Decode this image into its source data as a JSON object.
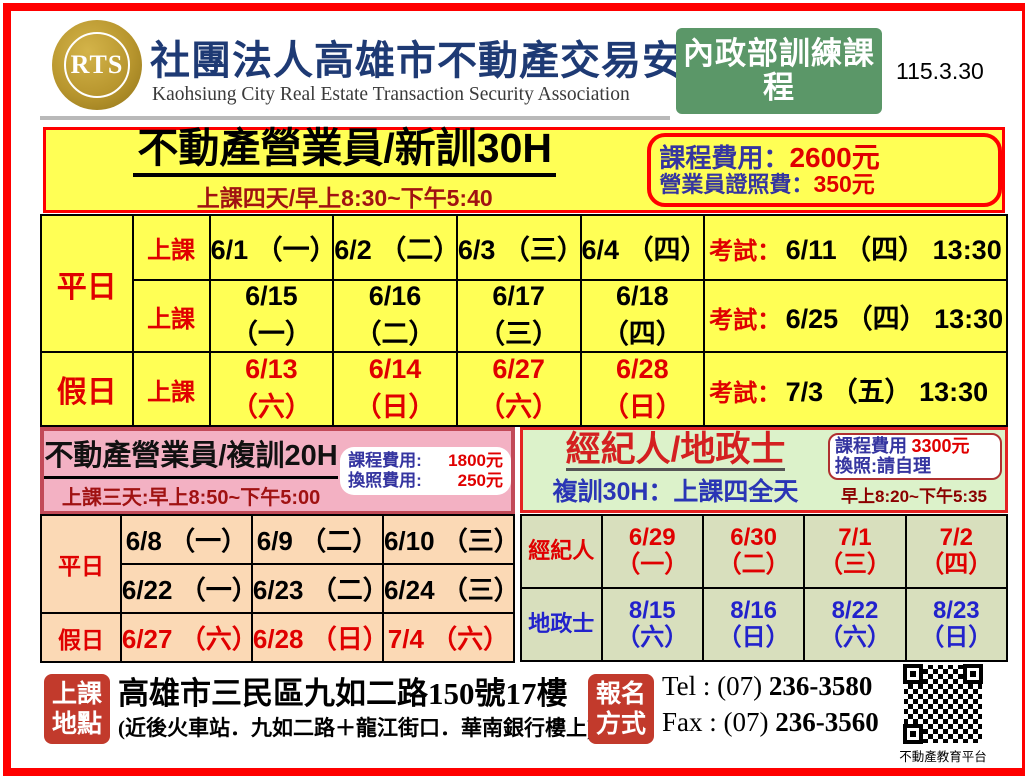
{
  "header": {
    "logo_text": "RTS",
    "org_name_zh": "社團法人高雄市不動產交易安全協會",
    "org_name_en": "Kaohsiung City Real Estate Transaction Security Association",
    "program_badge": "內政部訓練課程",
    "date": "115.3.30"
  },
  "new30h": {
    "title": "不動產營業員/新訓30H",
    "subtitle": "上課四天/早上8:30~下午5:40",
    "fees": {
      "course_label": "課程費用：",
      "course_value": "2600元",
      "license_label": "營業員證照費：",
      "license_value": "350元"
    },
    "rows": [
      {
        "group": "平日",
        "session": "上課",
        "dates": [
          "6/1 （一）",
          "6/2 （二）",
          "6/3 （三）",
          "6/4 （四）"
        ],
        "exam_label": "考試：",
        "exam": "6/11 （四） 13:30"
      },
      {
        "session": "上課",
        "dates": [
          "6/15 （一）",
          "6/16 （二）",
          "6/17 （三）",
          "6/18 （四）"
        ],
        "exam_label": "考試：",
        "exam": "6/25 （四） 13:30"
      },
      {
        "group": "假日",
        "session": "上課",
        "dates": [
          "6/13 （六）",
          "6/14 （日）",
          "6/27 （六）",
          "6/28 （日）"
        ],
        "exam_label": "考試：",
        "exam": "7/3 （五） 13:30"
      }
    ]
  },
  "re20h": {
    "title": "不動產營業員/複訓20H",
    "subtitle": "上課三天:早上8:50~下午5:00",
    "fees": {
      "course_label": "課程費用:",
      "course_value": "1800元",
      "exchange_label": "換照費用:",
      "exchange_value": "250元"
    },
    "rows": [
      {
        "group": "平日",
        "dates": [
          "6/8 （一）",
          "6/9 （二）",
          "6/10 （三）"
        ]
      },
      {
        "dates": [
          "6/22 （一）",
          "6/23 （二）",
          "6/24 （三）"
        ]
      },
      {
        "group": "假日",
        "dates": [
          "6/27 （六）",
          "6/28 （日）",
          "7/4 （六）"
        ]
      }
    ]
  },
  "broker": {
    "title": "經紀人/地政士",
    "subtitle": "複訓30H：上課四全天",
    "fees": {
      "course_label": "課程費用",
      "course_value": "3300元",
      "exchange_note": "換照:請自理",
      "time_note": "早上8:20~下午5:35"
    },
    "rows": [
      {
        "group": "經紀人",
        "cells": [
          {
            "date": "6/29",
            "day": "（一）"
          },
          {
            "date": "6/30",
            "day": "（二）"
          },
          {
            "date": "7/1",
            "day": "（三）"
          },
          {
            "date": "7/2",
            "day": "（四）"
          }
        ]
      },
      {
        "group": "地政士",
        "cells": [
          {
            "date": "8/15",
            "day": "（六）"
          },
          {
            "date": "8/16",
            "day": "（日）"
          },
          {
            "date": "8/22",
            "day": "（六）"
          },
          {
            "date": "8/23",
            "day": "（日）"
          }
        ]
      }
    ]
  },
  "footer": {
    "location_badge": "上課地點",
    "address": "高雄市三民區九如二路150號17樓",
    "address_note": "(近後火車站．九如二路＋龍江街口．華南銀行樓上)",
    "signup_badge": "報名方式",
    "tel_label": "Tel : ",
    "tel_area": "(07) ",
    "tel_number": "236-3580",
    "fax_label": "Fax : ",
    "fax_area": "(07) ",
    "fax_number": "236-3560",
    "qr_caption": "不動產教育平台"
  }
}
